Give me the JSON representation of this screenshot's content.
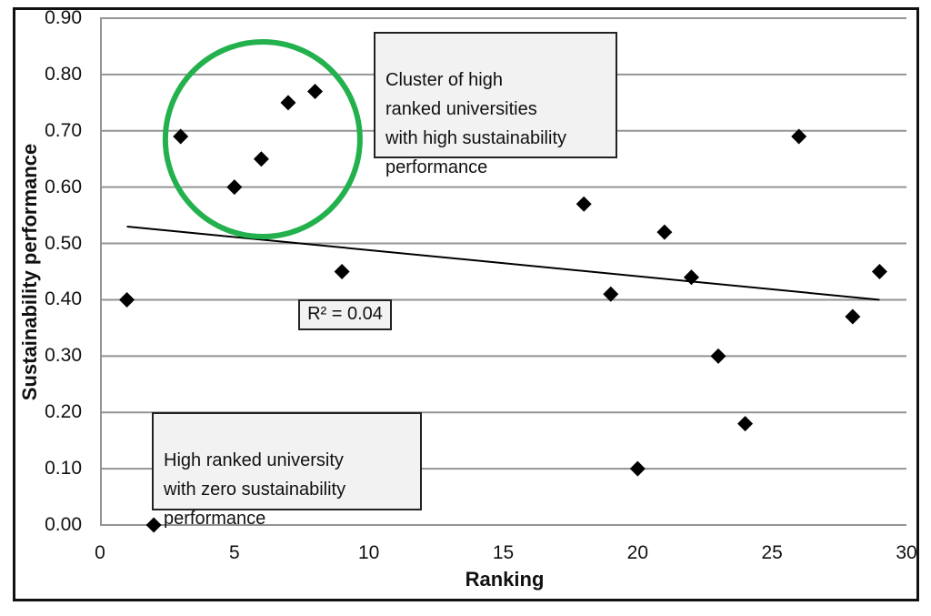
{
  "chart_data": {
    "type": "scatter",
    "title": "",
    "xlabel": "Ranking",
    "ylabel": "Sustainability performance",
    "xlim": [
      0,
      30
    ],
    "ylim": [
      0.0,
      0.9
    ],
    "x_tick_labels": [
      "0",
      "5",
      "10",
      "15",
      "20",
      "25",
      "30"
    ],
    "y_tick_labels": [
      "0.00",
      "0.10",
      "0.20",
      "0.30",
      "0.40",
      "0.50",
      "0.60",
      "0.70",
      "0.80",
      "0.90"
    ],
    "grid": "horizontal",
    "legend": "none",
    "marker": "diamond",
    "marker_color": "#000000",
    "grid_color": "#949494",
    "points": [
      [
        1,
        0.4
      ],
      [
        2,
        0.0
      ],
      [
        3,
        0.69
      ],
      [
        5,
        0.6
      ],
      [
        6,
        0.65
      ],
      [
        7,
        0.75
      ],
      [
        8,
        0.77
      ],
      [
        9,
        0.45
      ],
      [
        18,
        0.57
      ],
      [
        19,
        0.41
      ],
      [
        20,
        0.1
      ],
      [
        21,
        0.52
      ],
      [
        22,
        0.44
      ],
      [
        23,
        0.3
      ],
      [
        24,
        0.18
      ],
      [
        26,
        0.69
      ],
      [
        28,
        0.37
      ],
      [
        29,
        0.45
      ]
    ],
    "trendline": {
      "x1": 1,
      "y1": 0.53,
      "x2": 29,
      "y2": 0.4
    },
    "r_squared_label": "R² = 0.04",
    "cluster_circle": {
      "cx": 6.05,
      "cy": 0.685,
      "radius_px": 107,
      "color": "#23b14d"
    }
  },
  "annotations": {
    "cluster_note": "Cluster of high\nranked universities\nwith high sustainability\nperformance",
    "zero_note": "High ranked university\nwith zero sustainability\nperformance"
  }
}
